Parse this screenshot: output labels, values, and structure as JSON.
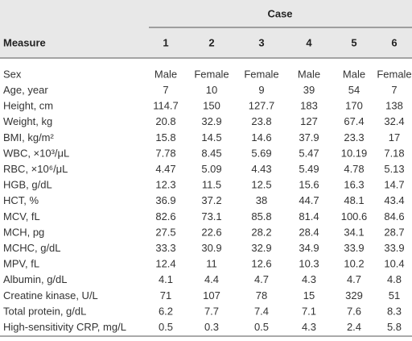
{
  "header": {
    "case_label": "Case",
    "measure": "Measure",
    "cases": [
      "1",
      "2",
      "3",
      "4",
      "5",
      "6"
    ]
  },
  "table": {
    "rows": [
      [
        "Sex",
        "Male",
        "Female",
        "Female",
        "Male",
        "Male",
        "Female"
      ],
      [
        "Age, year",
        "7",
        "10",
        "9",
        "39",
        "54",
        "7"
      ],
      [
        "Height, cm",
        "114.7",
        "150",
        "127.7",
        "183",
        "170",
        "138"
      ],
      [
        "Weight, kg",
        "20.8",
        "32.9",
        "23.8",
        "127",
        "67.4",
        "32.4"
      ],
      [
        "BMI, kg/m²",
        "15.8",
        "14.5",
        "14.6",
        "37.9",
        "23.3",
        "17"
      ],
      [
        "WBC, ×10³/μL",
        "7.78",
        "8.45",
        "5.69",
        "5.47",
        "10.19",
        "7.18"
      ],
      [
        "RBC, ×10⁶/μL",
        "4.47",
        "5.09",
        "4.43",
        "5.49",
        "4.78",
        "5.13"
      ],
      [
        "HGB, g/dL",
        "12.3",
        "11.5",
        "12.5",
        "15.6",
        "16.3",
        "14.7"
      ],
      [
        "HCT, %",
        "36.9",
        "37.2",
        "38",
        "44.7",
        "48.1",
        "43.4"
      ],
      [
        "MCV, fL",
        "82.6",
        "73.1",
        "85.8",
        "81.4",
        "100.6",
        "84.6"
      ],
      [
        "MCH, pg",
        "27.5",
        "22.6",
        "28.2",
        "28.4",
        "34.1",
        "28.7"
      ],
      [
        "MCHC, g/dL",
        "33.3",
        "30.9",
        "32.9",
        "34.9",
        "33.9",
        "33.9"
      ],
      [
        "MPV, fL",
        "12.4",
        "11",
        "12.6",
        "10.3",
        "10.2",
        "10.4"
      ],
      [
        "Albumin, g/dL",
        "4.1",
        "4.4",
        "4.7",
        "4.3",
        "4.7",
        "4.8"
      ],
      [
        "Creatine kinase, U/L",
        "71",
        "107",
        "78",
        "15",
        "329",
        "51"
      ],
      [
        "Total protein, g/dL",
        "6.2",
        "7.7",
        "7.4",
        "7.1",
        "7.6",
        "8.3"
      ],
      [
        "High-sensitivity CRP, mg/L",
        "0.5",
        "0.3",
        "0.5",
        "4.3",
        "2.4",
        "5.8"
      ]
    ]
  }
}
